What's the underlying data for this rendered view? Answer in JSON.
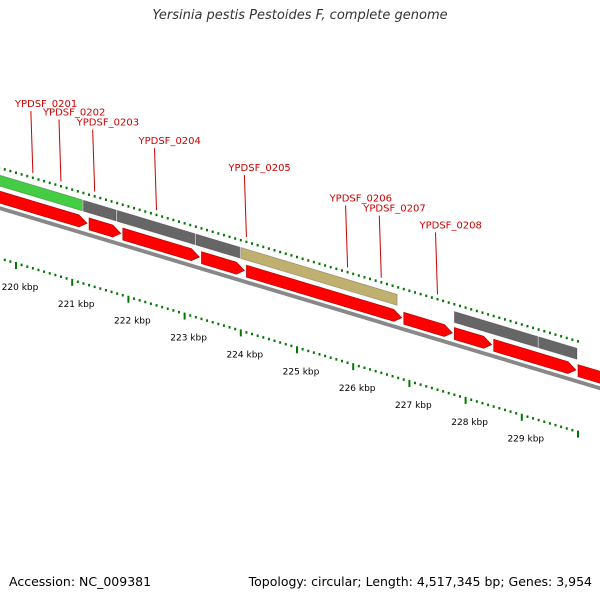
{
  "title": "Yersinia pestis Pestoides F, complete genome",
  "footer": {
    "accession": "Accession: NC_009381",
    "summary": "Topology: circular; Length: 4,517,345 bp; Genes: 3,954"
  },
  "colors": {
    "gene_label": "#cc0000",
    "cds_arrow": "#ff0000",
    "highlight_gene": "#44cc44",
    "gene_gray": "#666666",
    "gene_olive": "#c0b070",
    "tick": "#007700",
    "backbone": "#888888"
  },
  "map": {
    "start_kbp": 219.8,
    "end_kbp": 229.8,
    "gene_labels": [
      {
        "text": "YPDSF_0201",
        "kbp": 220.3
      },
      {
        "text": "YPDSF_0202",
        "kbp": 220.8
      },
      {
        "text": "YPDSF_0203",
        "kbp": 221.4
      },
      {
        "text": "YPDSF_0204",
        "kbp": 222.5
      },
      {
        "text": "YPDSF_0205",
        "kbp": 224.1
      },
      {
        "text": "YPDSF_0206",
        "kbp": 225.9
      },
      {
        "text": "YPDSF_0207",
        "kbp": 226.5
      },
      {
        "text": "YPDSF_0208",
        "kbp": 227.5
      }
    ],
    "gene_features": [
      {
        "start": 219.7,
        "end": 221.2,
        "type": "highlight"
      },
      {
        "start": 221.2,
        "end": 221.8,
        "type": "gray"
      },
      {
        "start": 221.8,
        "end": 223.2,
        "type": "gray"
      },
      {
        "start": 223.2,
        "end": 224.0,
        "type": "gray"
      },
      {
        "start": 224.0,
        "end": 226.8,
        "type": "olive"
      },
      {
        "start": 227.8,
        "end": 229.3,
        "type": "gray"
      },
      {
        "start": 229.3,
        "end": 230.0,
        "type": "gray"
      }
    ],
    "cds_arrows": [
      {
        "start": 219.7,
        "end": 221.3
      },
      {
        "start": 221.3,
        "end": 221.9
      },
      {
        "start": 221.9,
        "end": 223.3
      },
      {
        "start": 223.3,
        "end": 224.1
      },
      {
        "start": 224.1,
        "end": 226.9
      },
      {
        "start": 226.9,
        "end": 227.8
      },
      {
        "start": 227.8,
        "end": 228.5
      },
      {
        "start": 228.5,
        "end": 230.0
      },
      {
        "start": 230.0,
        "end": 230.6
      }
    ],
    "kbp_labels": [
      {
        "text": "220 kbp",
        "kbp": 220
      },
      {
        "text": "221 kbp",
        "kbp": 221
      },
      {
        "text": "222 kbp",
        "kbp": 222
      },
      {
        "text": "223 kbp",
        "kbp": 223
      },
      {
        "text": "224 kbp",
        "kbp": 224
      },
      {
        "text": "225 kbp",
        "kbp": 225
      },
      {
        "text": "226 kbp",
        "kbp": 226
      },
      {
        "text": "227 kbp",
        "kbp": 227
      },
      {
        "text": "228 kbp",
        "kbp": 228
      },
      {
        "text": "229 kbp",
        "kbp": 229
      }
    ]
  }
}
